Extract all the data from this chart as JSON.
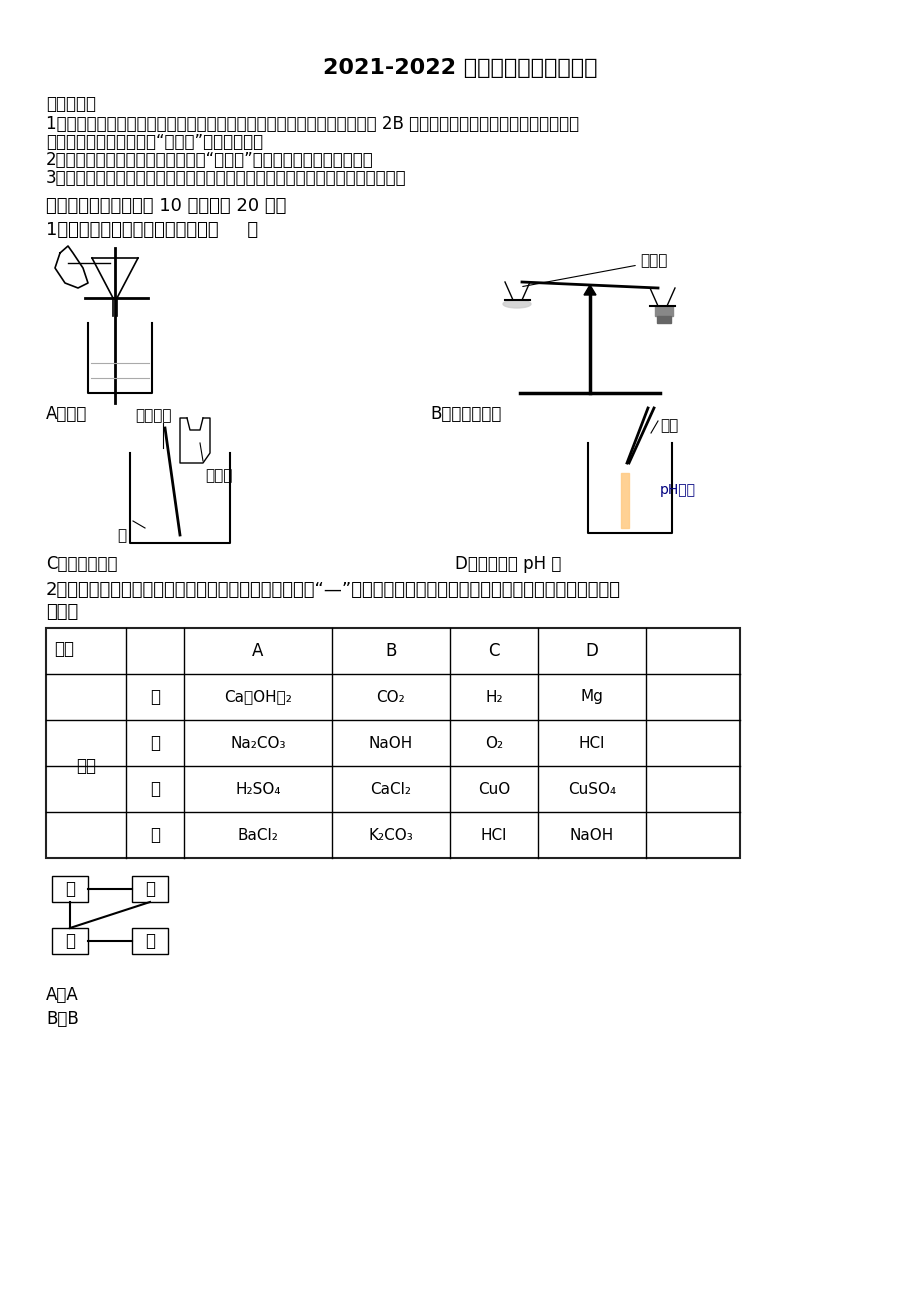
{
  "title": "2021-2022 学年中考化学模拟试卷",
  "notice_header": "考生须知：",
  "notice_line1a": "1．全卷分选择题和非选择题两部分，全部在答题纸上作答。选择题必须用 2B 铅笔填涂；非选择题的答案必须用黑色",
  "notice_line1b": "字迹的钒笔或答字笔写在“答题纸”相应位置上。",
  "notice_line2": "2．请用黑色字迹的钒笔或答字笔在“答题纸”上先填写姓名和准考证号。",
  "notice_line3": "3．保持卡面清洁，不要折叠，不要弄破、弄皸，在草稿纸、试题卷上答题无效。",
  "section1": "一、单选题（本大题共 10 小题，共 20 分）",
  "q1_text": "1．下列图示的实验操作正确的是（     ）",
  "q1_label_A": "A．过滤",
  "q1_label_B": "B．称取氯化钔",
  "q1_label_C": "C．稀释浓硫酸",
  "q1_label_D": "D．测溶液的 pH 值",
  "q1_anno_B": "氯化钔",
  "q1_anno_C1": "不断搞拌",
  "q1_anno_C2": "浓硫酸",
  "q1_anno_C3": "水",
  "q1_anno_D1": "镞子",
  "q1_anno_D2": "pH试纸",
  "q2_text": "2．甲、乙、丙、丁四种物质的相互反应关系如图所示，“—”表示相连的物质间能发生反应，下列符合对应反应关系的",
  "q2_text2": "选项是",
  "col_header_xuan": "选项",
  "col_A": "A",
  "col_B": "B",
  "col_C": "C",
  "col_D": "D",
  "row_group": "物质",
  "sub_labels": [
    "甲",
    "乙",
    "丙",
    "丁"
  ],
  "row_data": [
    [
      "Ca（OH）₂",
      "CO₂",
      "H₂",
      "Mg"
    ],
    [
      "Na₂CO₃",
      "NaOH",
      "O₂",
      "HCl"
    ],
    [
      "H₂SO₄",
      "CaCl₂",
      "CuO",
      "CuSO₄"
    ],
    [
      "BaCl₂",
      "K₂CO₃",
      "HCl",
      "NaOH"
    ]
  ],
  "ans1": "A．A",
  "ans2": "B．B",
  "bg_color": "#ffffff",
  "text_color": "#000000"
}
